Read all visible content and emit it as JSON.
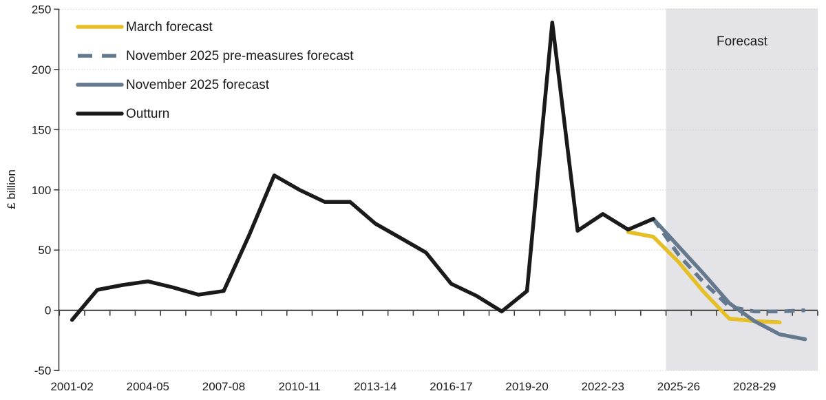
{
  "chart_data": {
    "type": "line",
    "title": "",
    "ylabel": "£ billion",
    "ylim": [
      -50,
      250
    ],
    "yticks": [
      250,
      200,
      150,
      100,
      50,
      0,
      -50
    ],
    "x_axis_years": [
      "2001-02",
      "2002-03",
      "2003-04",
      "2004-05",
      "2005-06",
      "2006-07",
      "2007-08",
      "2008-09",
      "2009-10",
      "2010-11",
      "2011-12",
      "2012-13",
      "2013-14",
      "2014-15",
      "2015-16",
      "2016-17",
      "2017-18",
      "2018-19",
      "2019-20",
      "2020-21",
      "2021-22",
      "2022-23",
      "2023-24",
      "2024-25",
      "2025-26",
      "2026-27",
      "2027-28",
      "2028-29",
      "2029-30",
      "2030-31"
    ],
    "x_tick_labels": [
      "2001-02",
      "2004-05",
      "2007-08",
      "2010-11",
      "2013-14",
      "2016-17",
      "2019-20",
      "2022-23",
      "2025-26",
      "2028-29"
    ],
    "grid": "dotted-horizontal",
    "legend_position": "top-left-inside",
    "forecast_region": {
      "label": "Forecast",
      "start_year": "2025-26",
      "end_year": "2030-31",
      "fill_color": "#e4e4e8"
    },
    "series": [
      {
        "name": "March forecast",
        "color": "#e5bf25",
        "style": "solid",
        "start_year": "2023-24",
        "values": [
          65,
          61,
          40,
          15,
          -7,
          -9,
          -10
        ]
      },
      {
        "name": "November 2025 pre-measures forecast",
        "color": "#64798e",
        "style": "dashed",
        "start_year": "2024-25",
        "values": [
          76,
          46,
          23,
          3,
          -1,
          -1,
          0
        ]
      },
      {
        "name": "November 2025 forecast",
        "color": "#64798e",
        "style": "solid",
        "start_year": "2024-25",
        "values": [
          76,
          53,
          30,
          6,
          -9,
          -20,
          -24
        ]
      },
      {
        "name": "Outturn",
        "color": "#1a1a1a",
        "style": "solid",
        "start_year": "2001-02",
        "values": [
          -8,
          17,
          21,
          24,
          19,
          13,
          16,
          62,
          112,
          100,
          90,
          90,
          72,
          60,
          48,
          22,
          12,
          -1,
          16,
          239,
          66,
          80,
          67,
          76
        ]
      }
    ],
    "colors": {
      "axis": "#3c3c3c",
      "gridline": "#d2d2d2",
      "text": "#1a1a1a"
    }
  }
}
